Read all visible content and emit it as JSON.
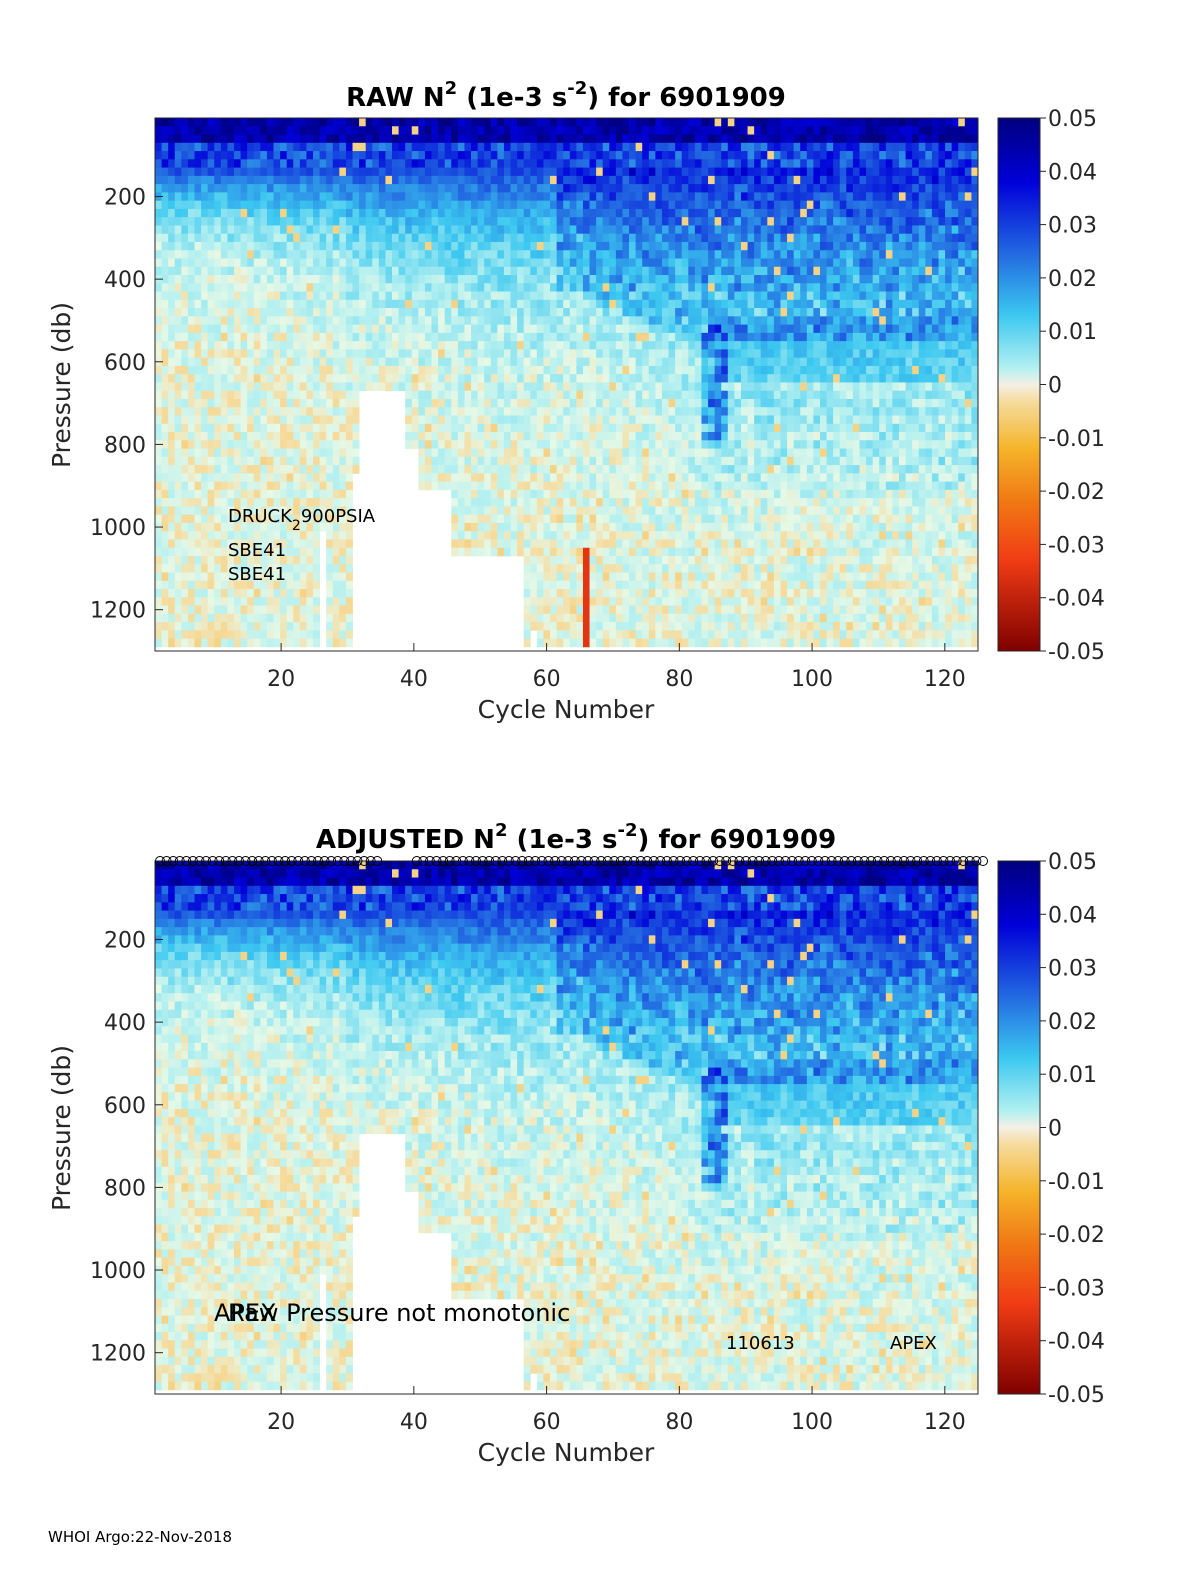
{
  "chart_data": [
    {
      "type": "heatmap",
      "title_main": "RAW N",
      "title_sup1": "2",
      "title_units": " (1e-3 s",
      "title_sup2": "-2",
      "title_tail": ") for 6901909",
      "xlabel": "Cycle Number",
      "ylabel": "Pressure (db)",
      "xlim": [
        1,
        125
      ],
      "ylim": [
        1300,
        10
      ],
      "xticks": [
        "20",
        "40",
        "60",
        "80",
        "100",
        "120"
      ],
      "xtick_values": [
        20,
        40,
        60,
        80,
        100,
        120
      ],
      "yticks": [
        "200",
        "400",
        "600",
        "800",
        "1000",
        "1200"
      ],
      "ytick_values": [
        200,
        400,
        600,
        800,
        1000,
        1200
      ],
      "colorbar_ticks": [
        "0.05",
        "0.04",
        "0.03",
        "0.02",
        "0.01",
        "0",
        "-0.01",
        "-0.02",
        "-0.03",
        "-0.04",
        "-0.05"
      ],
      "colorbar_range": [
        -0.05,
        0.05
      ],
      "annotations": {
        "sensor_prefix": "DRUCK",
        "sensor_sub": "2",
        "sensor_suffix": "900PSIA",
        "sbe_a": "SBE41",
        "sbe_b": "SBE41"
      },
      "notable_feature": "negative N2 streak at cycle 66 below 1050 db (about -0.035)"
    },
    {
      "type": "heatmap",
      "title_main": "ADJUSTED N",
      "title_sup1": "2",
      "title_units": " (1e-3 s",
      "title_sup2": "-2",
      "title_tail": ") for 6901909",
      "xlabel": "Cycle Number",
      "ylabel": "Pressure (db)",
      "xlim": [
        1,
        125
      ],
      "ylim": [
        1300,
        10
      ],
      "xticks": [
        "20",
        "40",
        "60",
        "80",
        "100",
        "120"
      ],
      "xtick_values": [
        20,
        40,
        60,
        80,
        100,
        120
      ],
      "yticks": [
        "200",
        "400",
        "600",
        "800",
        "1000",
        "1200"
      ],
      "ytick_values": [
        200,
        400,
        600,
        800,
        1000,
        1200
      ],
      "colorbar_ticks": [
        "0.05",
        "0.04",
        "0.03",
        "0.02",
        "0.01",
        "0",
        "-0.01",
        "-0.02",
        "-0.03",
        "-0.04",
        "-0.05"
      ],
      "colorbar_range": [
        -0.05,
        0.05
      ],
      "annotations": {
        "apex_a": "APEX",
        "raw_note": "Raw Pressure not monotonic",
        "serial": "110613",
        "apex_b": "APEX"
      },
      "marker_row": "open circle markers at top of each profiled cycle"
    }
  ],
  "footer": "WHOI Argo:22-Nov-2018",
  "colors": {
    "background_field": "#e6f8e6",
    "positive_max": "#00007f",
    "negative_max": "#7f0000",
    "streak": "#f03c14"
  }
}
